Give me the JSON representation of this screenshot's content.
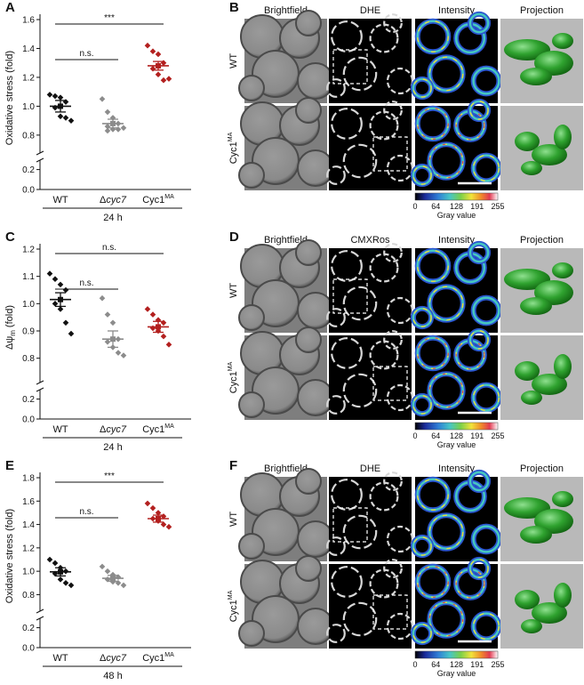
{
  "colors": {
    "wt": "#111111",
    "cyc7": "#8c8c8c",
    "cyc1": "#b3201f",
    "micro_bg": "#7a7a7a",
    "green": "#2e9e2e"
  },
  "rows": [
    {
      "left_letter": "A",
      "right_letter": "B",
      "scatter": {
        "ylabel": "Oxidative stress (fold)",
        "ylabel_sub": "",
        "time": "24 h",
        "ticks_upper": [
          "0.8",
          "1.0",
          "1.2",
          "1.4",
          "1.6"
        ],
        "ticks_lower": [
          "0.0",
          "0.2"
        ],
        "groups": [
          {
            "label_main": "WT",
            "label_it": "",
            "label_sup": ""
          },
          {
            "label_main": "Δ",
            "label_it": "cyc7",
            "label_sup": ""
          },
          {
            "label_main": "Cyc1",
            "label_it": "",
            "label_sup": "MA"
          }
        ],
        "sig": [
          {
            "text": "n.s.",
            "from": 0,
            "to": 1
          },
          {
            "text": "***",
            "from": 0,
            "to": 2
          }
        ]
      },
      "micro": {
        "col_headers": [
          "Brightfield",
          "DHE",
          "Intensity",
          "Projection"
        ],
        "row_label_1": {
          "main": "WT",
          "sup": ""
        },
        "row_label_2": {
          "main": "Cyc1",
          "sup": "MA"
        },
        "colorbar_ticks": [
          "0",
          "64",
          "128",
          "191",
          "255"
        ],
        "colorbar_title": "Gray value"
      }
    },
    {
      "left_letter": "C",
      "right_letter": "D",
      "scatter": {
        "ylabel": "Δψ",
        "ylabel_sub": "m",
        "ylabel_tail": " (fold)",
        "time": "24 h",
        "ticks_upper": [
          "0.8",
          "0.9",
          "1.0",
          "1.1",
          "1.2"
        ],
        "ticks_lower": [
          "0.0",
          "0.2"
        ],
        "groups": [
          {
            "label_main": "WT",
            "label_it": "",
            "label_sup": ""
          },
          {
            "label_main": "Δ",
            "label_it": "cyc7",
            "label_sup": ""
          },
          {
            "label_main": "Cyc1",
            "label_it": "",
            "label_sup": "MA"
          }
        ],
        "sig": [
          {
            "text": "n.s.",
            "from": 0,
            "to": 1
          },
          {
            "text": "n.s.",
            "from": 0,
            "to": 2
          }
        ]
      },
      "micro": {
        "col_headers": [
          "Brightfield",
          "CMXRos",
          "Intensity",
          "Projection"
        ],
        "row_label_1": {
          "main": "WT",
          "sup": ""
        },
        "row_label_2": {
          "main": "Cyc1",
          "sup": "MA"
        },
        "colorbar_ticks": [
          "0",
          "64",
          "128",
          "191",
          "255"
        ],
        "colorbar_title": "Gray value"
      }
    },
    {
      "left_letter": "E",
      "right_letter": "F",
      "scatter": {
        "ylabel": "Oxidative stress (fold)",
        "ylabel_sub": "",
        "time": "48 h",
        "ticks_upper": [
          "0.8",
          "1.0",
          "1.2",
          "1.4",
          "1.6",
          "1.8"
        ],
        "ticks_lower": [
          "0.0",
          "0.2"
        ],
        "groups": [
          {
            "label_main": "WT",
            "label_it": "",
            "label_sup": ""
          },
          {
            "label_main": "Δ",
            "label_it": "cyc7",
            "label_sup": ""
          },
          {
            "label_main": "Cyc1",
            "label_it": "",
            "label_sup": "MA"
          }
        ],
        "sig": [
          {
            "text": "n.s.",
            "from": 0,
            "to": 1
          },
          {
            "text": "***",
            "from": 0,
            "to": 2
          }
        ]
      },
      "micro": {
        "col_headers": [
          "Brightfield",
          "DHE",
          "Intensity",
          "Projection"
        ],
        "row_label_1": {
          "main": "WT",
          "sup": ""
        },
        "row_label_2": {
          "main": "Cyc1",
          "sup": "MA"
        },
        "colorbar_ticks": [
          "0",
          "64",
          "128",
          "191",
          "255"
        ],
        "colorbar_title": "Gray value"
      }
    }
  ],
  "chart_data": [
    {
      "type": "scatter",
      "title": "",
      "xlabel": "24 h",
      "ylabel": "Oxidative stress (fold)",
      "ylim_upper": [
        0.75,
        1.6
      ],
      "ylim_lower": [
        0.0,
        0.25
      ],
      "categories": [
        "WT",
        "Δcyc7",
        "Cyc1MA"
      ],
      "series": [
        {
          "category": "WT",
          "mean": 1.0,
          "sem": 0.04,
          "points": [
            1.08,
            1.07,
            1.06,
            1.03,
            0.99,
            0.93,
            0.92,
            0.9
          ]
        },
        {
          "category": "Δcyc7",
          "mean": 0.88,
          "sem": 0.03,
          "points": [
            1.05,
            0.96,
            0.92,
            0.88,
            0.86,
            0.84,
            0.84,
            0.85,
            0.83
          ]
        },
        {
          "category": "Cyc1MA",
          "mean": 1.28,
          "sem": 0.03,
          "points": [
            1.42,
            1.38,
            1.36,
            1.3,
            1.26,
            1.22,
            1.18,
            1.19
          ]
        }
      ],
      "significance": [
        {
          "pair": [
            "WT",
            "Δcyc7"
          ],
          "label": "n.s."
        },
        {
          "pair": [
            "WT",
            "Cyc1MA"
          ],
          "label": "***"
        }
      ]
    },
    {
      "type": "scatter",
      "title": "",
      "xlabel": "24 h",
      "ylabel": "Δψm (fold)",
      "ylim_upper": [
        0.75,
        1.2
      ],
      "ylim_lower": [
        0.0,
        0.25
      ],
      "categories": [
        "WT",
        "Δcyc7",
        "Cyc1MA"
      ],
      "series": [
        {
          "category": "WT",
          "mean": 1.015,
          "sem": 0.025,
          "points": [
            1.11,
            1.09,
            1.07,
            1.05,
            1.0,
            0.98,
            0.93,
            0.89
          ]
        },
        {
          "category": "Δcyc7",
          "mean": 0.87,
          "sem": 0.03,
          "points": [
            1.02,
            0.96,
            0.93,
            0.87,
            0.86,
            0.84,
            0.82,
            0.81
          ]
        },
        {
          "category": "Cyc1MA",
          "mean": 0.915,
          "sem": 0.02,
          "points": [
            0.98,
            0.96,
            0.94,
            0.93,
            0.91,
            0.9,
            0.88,
            0.85
          ]
        }
      ],
      "significance": [
        {
          "pair": [
            "WT",
            "Δcyc7"
          ],
          "label": "n.s."
        },
        {
          "pair": [
            "WT",
            "Cyc1MA"
          ],
          "label": "n.s."
        }
      ]
    },
    {
      "type": "scatter",
      "title": "",
      "xlabel": "48 h",
      "ylabel": "Oxidative stress (fold)",
      "ylim_upper": [
        0.75,
        1.8
      ],
      "ylim_lower": [
        0.0,
        0.25
      ],
      "categories": [
        "WT",
        "Δcyc7",
        "Cyc1MA"
      ],
      "series": [
        {
          "category": "WT",
          "mean": 0.995,
          "sem": 0.035,
          "points": [
            1.1,
            1.07,
            1.03,
            1.0,
            0.98,
            0.93,
            0.9,
            0.88
          ]
        },
        {
          "category": "Δcyc7",
          "mean": 0.94,
          "sem": 0.025,
          "points": [
            1.04,
            1.0,
            0.97,
            0.95,
            0.93,
            0.91,
            0.9,
            0.88
          ]
        },
        {
          "category": "Cyc1MA",
          "mean": 1.45,
          "sem": 0.03,
          "points": [
            1.58,
            1.54,
            1.5,
            1.47,
            1.45,
            1.43,
            1.4,
            1.38
          ]
        }
      ],
      "significance": [
        {
          "pair": [
            "WT",
            "Δcyc7"
          ],
          "label": "n.s."
        },
        {
          "pair": [
            "WT",
            "Cyc1MA"
          ],
          "label": "***"
        }
      ]
    }
  ]
}
